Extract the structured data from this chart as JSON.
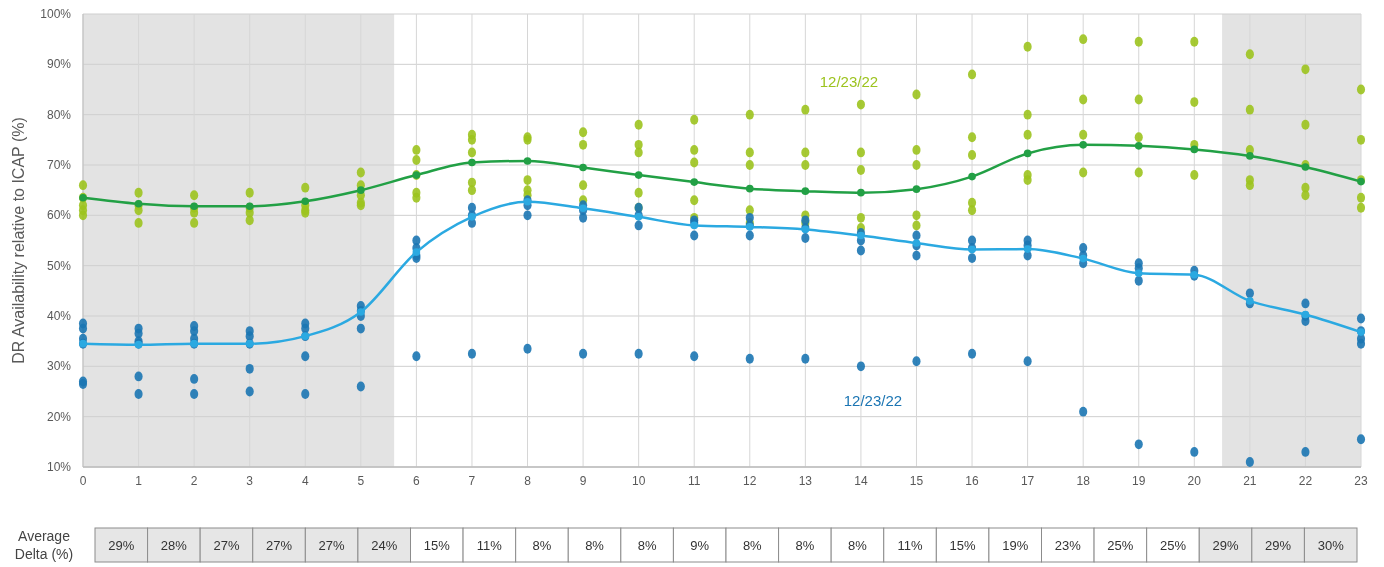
{
  "chart_data": [
    {
      "type": "line",
      "ylabel": "DR Availability relative to ICAP (%)",
      "xlim": [
        0,
        23
      ],
      "ylim": [
        10,
        100
      ],
      "xticks": [
        0,
        1,
        2,
        3,
        4,
        5,
        6,
        7,
        8,
        9,
        10,
        11,
        12,
        13,
        14,
        15,
        16,
        17,
        18,
        19,
        20,
        21,
        22,
        23
      ],
      "yticks": [
        {
          "value": 10,
          "label": "10%"
        },
        {
          "value": 20,
          "label": "20%"
        },
        {
          "value": 30,
          "label": "30%"
        },
        {
          "value": 40,
          "label": "40%"
        },
        {
          "value": 50,
          "label": "50%"
        },
        {
          "value": 60,
          "label": "60%"
        },
        {
          "value": 70,
          "label": "70%"
        },
        {
          "value": 80,
          "label": "80%"
        },
        {
          "value": 90,
          "label": "90%"
        },
        {
          "value": 100,
          "label": "100%"
        }
      ],
      "grid": true,
      "bands": [
        {
          "axis": "x",
          "from": 0,
          "to": 5.6,
          "color": "#e3e3e3"
        },
        {
          "axis": "x",
          "from": 20.5,
          "to": 23,
          "color": "#e3e3e3"
        }
      ],
      "annotations": [
        {
          "text": "12/23/22",
          "x": 14,
          "y": 82
        },
        {
          "text": "12/23/22",
          "x": 14,
          "y": 30
        }
      ],
      "series": [
        {
          "type": "scatter",
          "color": "#9cc31e",
          "marker": "circle",
          "x": [
            0,
            0,
            0,
            0,
            0,
            1,
            1,
            1,
            1,
            2,
            2,
            2,
            2,
            3,
            3,
            3,
            3,
            4,
            4,
            4,
            4,
            5,
            5,
            5,
            5,
            5,
            6,
            6,
            6,
            6,
            6,
            7,
            7,
            7,
            7,
            7,
            8,
            8,
            8,
            8,
            8,
            9,
            9,
            9,
            9,
            10,
            10,
            10,
            10,
            10,
            11,
            11,
            11,
            11,
            11,
            12,
            12,
            12,
            12,
            12,
            13,
            13,
            13,
            13,
            13,
            14,
            14,
            14,
            14,
            14,
            15,
            15,
            15,
            15,
            15,
            16,
            16,
            16,
            16,
            16,
            17,
            17,
            17,
            17,
            17,
            18,
            18,
            18,
            18,
            19,
            19,
            19,
            19,
            20,
            20,
            20,
            20,
            21,
            21,
            21,
            21,
            21,
            22,
            22,
            22,
            22,
            22,
            23,
            23,
            23,
            23,
            23
          ],
          "values": [
            66,
            63.5,
            62,
            61,
            60,
            64.5,
            62,
            61,
            58.5,
            64,
            61.5,
            60.5,
            58.5,
            64.5,
            61.5,
            60.5,
            59,
            65.5,
            62,
            61,
            60.5,
            68.5,
            66,
            64,
            62.5,
            62,
            73,
            71,
            68,
            64.5,
            63.5,
            76,
            75,
            72.5,
            66.5,
            65,
            75.5,
            75,
            67,
            65,
            64,
            76.5,
            74,
            66,
            63,
            78,
            74,
            72.5,
            64.5,
            61.5,
            79,
            73,
            70.5,
            63,
            59.5,
            80,
            72.5,
            70,
            61,
            58.5,
            81,
            72.5,
            70,
            60,
            58.5,
            82,
            72.5,
            69,
            59.5,
            57.5,
            84,
            73,
            70,
            60,
            58,
            88,
            75.5,
            72,
            62.5,
            61,
            93.5,
            80,
            76,
            68,
            67,
            95,
            83,
            76,
            68.5,
            94.5,
            83,
            75.5,
            68.5,
            94.5,
            82.5,
            74,
            68,
            92,
            81,
            73,
            67,
            66,
            89,
            78,
            70,
            65.5,
            64,
            85,
            75,
            67,
            63.5,
            61.5
          ]
        },
        {
          "type": "scatter",
          "color": "#1b75b3",
          "marker": "circle",
          "x": [
            0,
            0,
            0,
            0,
            0,
            0,
            1,
            1,
            1,
            1,
            1,
            1,
            2,
            2,
            2,
            2,
            2,
            2,
            3,
            3,
            3,
            3,
            3,
            4,
            4,
            4,
            4,
            4,
            5,
            5,
            5,
            5,
            5,
            6,
            6,
            6,
            6,
            6,
            7,
            7,
            7,
            7,
            8,
            8,
            8,
            8,
            9,
            9,
            9,
            9,
            10,
            10,
            10,
            10,
            11,
            11,
            11,
            11,
            12,
            12,
            12,
            12,
            13,
            13,
            13,
            13,
            14,
            14,
            14,
            14,
            15,
            15,
            15,
            15,
            16,
            16,
            16,
            16,
            17,
            17,
            17,
            17,
            18,
            18,
            18,
            18,
            19,
            19,
            19,
            19,
            20,
            20,
            20,
            21,
            21,
            21,
            22,
            22,
            22,
            22,
            23,
            23,
            23,
            23,
            23
          ],
          "values": [
            38.5,
            37.5,
            35.5,
            34.5,
            27,
            26.5,
            37.5,
            36.5,
            35,
            34.5,
            28,
            24.5,
            38,
            37,
            35.5,
            34.5,
            27.5,
            24.5,
            37,
            36,
            34.5,
            29.5,
            25,
            38.5,
            37.5,
            36,
            32,
            24.5,
            42,
            41,
            40,
            37.5,
            26,
            55,
            53.5,
            52,
            51.5,
            32,
            61.5,
            60,
            58.5,
            32.5,
            63,
            62,
            60,
            33.5,
            62,
            61,
            59.5,
            32.5,
            61.5,
            60,
            58,
            32.5,
            59,
            58.5,
            56,
            32,
            59.5,
            58,
            56,
            31.5,
            59,
            57.5,
            55.5,
            31.5,
            56.5,
            55,
            53,
            30,
            56,
            54,
            52,
            31,
            55,
            53.5,
            51.5,
            32.5,
            55,
            54,
            52,
            31,
            53.5,
            52,
            50.5,
            21,
            50.5,
            49.5,
            47,
            14.5,
            49,
            48,
            13,
            44.5,
            42.5,
            11,
            42.5,
            40,
            39,
            13,
            39.5,
            37,
            35.5,
            34.5,
            15.5
          ]
        },
        {
          "type": "line",
          "color": "#22a045",
          "marker": "circle",
          "x": [
            0,
            1,
            2,
            3,
            4,
            5,
            6,
            7,
            8,
            9,
            10,
            11,
            12,
            13,
            14,
            15,
            16,
            17,
            18,
            19,
            20,
            21,
            22,
            23
          ],
          "values": [
            63.5,
            62.3,
            61.8,
            61.8,
            62.8,
            65,
            68,
            70.5,
            70.8,
            69.5,
            68,
            66.6,
            65.3,
            64.8,
            64.5,
            65.2,
            67.7,
            72.3,
            74,
            73.8,
            73.1,
            71.8,
            69.6,
            66.7
          ]
        },
        {
          "type": "line",
          "color": "#2ba9e1",
          "marker": "circle",
          "x": [
            0,
            1,
            2,
            3,
            4,
            5,
            6,
            7,
            8,
            9,
            10,
            11,
            12,
            13,
            14,
            15,
            16,
            17,
            18,
            19,
            20,
            21,
            22,
            23
          ],
          "values": [
            34.5,
            34.3,
            34.5,
            34.5,
            36,
            40.8,
            52.7,
            59.7,
            62.7,
            61.4,
            59.7,
            58,
            57.7,
            57.2,
            56,
            54.5,
            53.2,
            53.3,
            51.4,
            48.5,
            48.2,
            43,
            40.3,
            36.8
          ]
        }
      ]
    },
    {
      "type": "other",
      "title": "Average Delta (%)",
      "value_labels": [
        "29%",
        "28%",
        "27%",
        "27%",
        "27%",
        "24%",
        "15%",
        "11%",
        "8%",
        "8%",
        "8%",
        "9%",
        "8%",
        "8%",
        "8%",
        "11%",
        "15%",
        "19%",
        "23%",
        "25%",
        "25%",
        "29%",
        "29%",
        "30%"
      ],
      "colors": [
        "#e6e6e6",
        "#e6e6e6",
        "#e6e6e6",
        "#e6e6e6",
        "#e6e6e6",
        "#e6e6e6",
        "#ffffff",
        "#ffffff",
        "#ffffff",
        "#ffffff",
        "#ffffff",
        "#ffffff",
        "#ffffff",
        "#ffffff",
        "#ffffff",
        "#ffffff",
        "#ffffff",
        "#ffffff",
        "#ffffff",
        "#ffffff",
        "#ffffff",
        "#e6e6e6",
        "#e6e6e6",
        "#e6e6e6"
      ]
    }
  ]
}
